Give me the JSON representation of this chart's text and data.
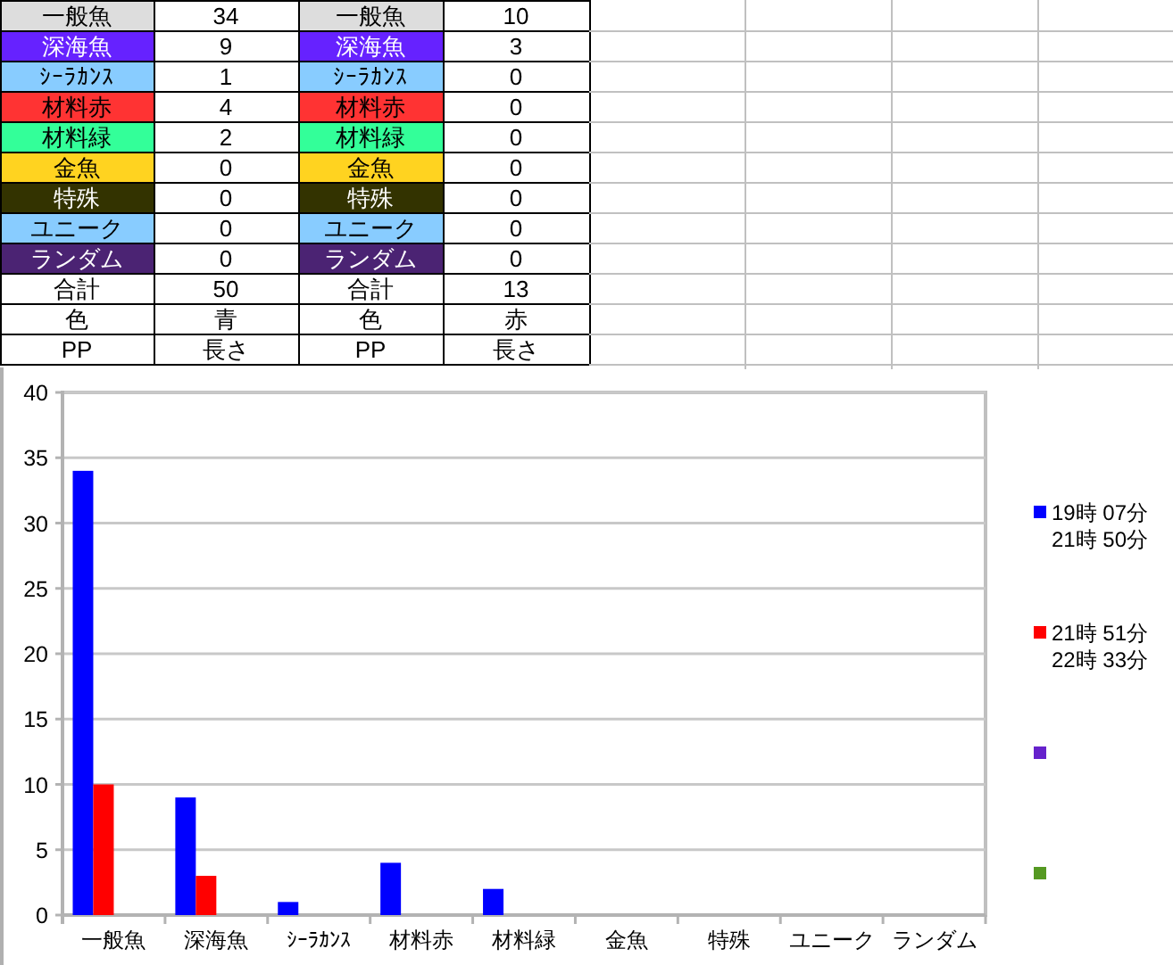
{
  "chart_data": [
    {
      "type": "other",
      "annotations": [
        "一般魚",
        "34",
        "一般魚",
        "10",
        "深海魚",
        "9",
        "深海魚",
        "3",
        "ｼｰﾗｶﾝｽ",
        "1",
        "ｼｰﾗｶﾝｽ",
        "0",
        "材料赤",
        "4",
        "材料赤",
        "0",
        "材料緑",
        "2",
        "材料緑",
        "0",
        "金魚",
        "0",
        "金魚",
        "0",
        "特殊",
        "0",
        "特殊",
        "0",
        "ユニーク",
        "0",
        "ユニーク",
        "0",
        "ランダム",
        "0",
        "ランダム",
        "0",
        "合計",
        "50",
        "合計",
        "13",
        "色",
        "青",
        "色",
        "赤",
        "PP",
        "長さ",
        "PP",
        "長さ"
      ]
    },
    {
      "type": "bar",
      "categories": [
        "一般魚",
        "深海魚",
        "ｼｰﾗｶﾝｽ",
        "材料赤",
        "材料緑",
        "金魚",
        "特殊",
        "ユニーク",
        "ランダム"
      ],
      "series": [
        {
          "name": "19時 07分\n21時 50分",
          "color": "#0000ff",
          "values": [
            34,
            9,
            1,
            4,
            2,
            0,
            0,
            0,
            0
          ]
        },
        {
          "name": "21時 51分\n22時 33分",
          "color": "#ff0000",
          "values": [
            10,
            3,
            0,
            0,
            0,
            0,
            0,
            0,
            0
          ]
        },
        {
          "color": "#6622cc",
          "values": [
            null,
            null,
            null,
            null,
            null,
            null,
            null,
            null,
            null
          ]
        },
        {
          "color": "#559922",
          "values": [
            null,
            null,
            null,
            null,
            null,
            null,
            null,
            null,
            null
          ]
        }
      ],
      "ylim": [
        0,
        40
      ],
      "yticks": [
        0,
        5,
        10,
        15,
        20,
        25,
        30,
        35,
        40
      ],
      "grid": "y",
      "legend": "right"
    }
  ]
}
